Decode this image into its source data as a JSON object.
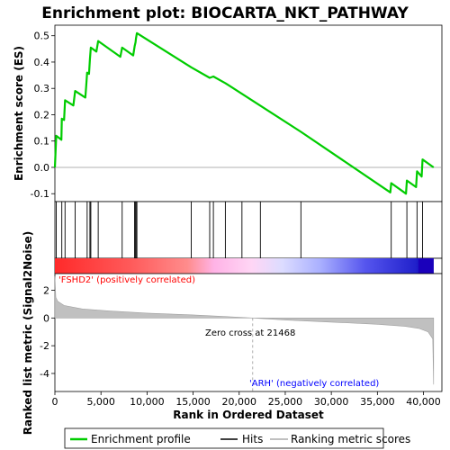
{
  "chart_data": {
    "title": "Enrichment plot: BIOCARTA_NKT_PATHWAY",
    "type": "line",
    "es_panel": {
      "ylabel": "Enrichment score (ES)",
      "ylim": [
        -0.13,
        0.54
      ],
      "yticks": [
        -0.1,
        0.0,
        0.1,
        0.2,
        0.3,
        0.4,
        0.5
      ],
      "ytick_labels": [
        "-0.1",
        "0.0",
        "0.1",
        "0.2",
        "0.3",
        "0.4",
        "0.5"
      ],
      "color": "#00cc00",
      "points": [
        [
          0,
          0.0
        ],
        [
          150,
          0.12
        ],
        [
          700,
          0.105
        ],
        [
          750,
          0.185
        ],
        [
          1000,
          0.18
        ],
        [
          1100,
          0.255
        ],
        [
          2000,
          0.235
        ],
        [
          2200,
          0.29
        ],
        [
          3300,
          0.265
        ],
        [
          3400,
          0.31
        ],
        [
          3500,
          0.36
        ],
        [
          3700,
          0.355
        ],
        [
          3800,
          0.41
        ],
        [
          3900,
          0.455
        ],
        [
          4500,
          0.44
        ],
        [
          4700,
          0.48
        ],
        [
          7100,
          0.42
        ],
        [
          7300,
          0.455
        ],
        [
          8500,
          0.425
        ],
        [
          8650,
          0.46
        ],
        [
          8750,
          0.475
        ],
        [
          8800,
          0.49
        ],
        [
          8900,
          0.51
        ],
        [
          14800,
          0.38
        ],
        [
          16800,
          0.34
        ],
        [
          17200,
          0.345
        ],
        [
          18500,
          0.32
        ],
        [
          26700,
          0.135
        ],
        [
          36400,
          -0.095
        ],
        [
          36500,
          -0.06
        ],
        [
          38100,
          -0.1
        ],
        [
          38200,
          -0.05
        ],
        [
          39200,
          -0.075
        ],
        [
          39300,
          -0.015
        ],
        [
          39800,
          -0.035
        ],
        [
          39900,
          0.03
        ],
        [
          41100,
          0.0
        ]
      ]
    },
    "hits_panel": {
      "hit_ranks": [
        150,
        750,
        1100,
        2200,
        3500,
        3800,
        3900,
        4700,
        7300,
        8650,
        8750,
        8800,
        8900,
        14800,
        16800,
        17200,
        18500,
        20300,
        22300,
        26700,
        36500,
        38200,
        39300,
        39900
      ]
    },
    "metric_panel": {
      "ylabel": "Ranked list metric (Signal2Noise)",
      "xlabel": "Rank in Ordered Dataset",
      "ylim": [
        -5.3,
        3.2
      ],
      "yticks": [
        -4,
        -2,
        0,
        2
      ],
      "ytick_labels": [
        "-4",
        "-2",
        "0",
        "2"
      ],
      "xlim": [
        0,
        42000
      ],
      "xticks": [
        0,
        5000,
        10000,
        15000,
        20000,
        25000,
        30000,
        35000,
        40000
      ],
      "xtick_labels": [
        "0",
        "5,000",
        "10,000",
        "15,000",
        "20,000",
        "25,000",
        "30,000",
        "35,000",
        "40,000"
      ],
      "zero_cross": 21468,
      "zero_cross_label": "Zero cross at 21468",
      "pos_label": "'FSHD2' (positively correlated)",
      "neg_label": "'ARH' (negatively correlated)",
      "pos_color": "#ff0000",
      "neg_color": "#0000ff",
      "fill_color": "#c0c0c0",
      "metric_profile": [
        [
          0,
          3.0
        ],
        [
          100,
          1.5
        ],
        [
          300,
          1.2
        ],
        [
          1000,
          0.9
        ],
        [
          3000,
          0.65
        ],
        [
          6000,
          0.5
        ],
        [
          10000,
          0.35
        ],
        [
          15000,
          0.22
        ],
        [
          21468,
          0.0
        ],
        [
          25000,
          -0.15
        ],
        [
          30000,
          -0.3
        ],
        [
          35000,
          -0.45
        ],
        [
          38000,
          -0.6
        ],
        [
          39500,
          -0.75
        ],
        [
          40500,
          -1.0
        ],
        [
          41000,
          -1.5
        ],
        [
          41100,
          -4.8
        ]
      ],
      "total_ranks": 41100
    },
    "legend": {
      "entries": [
        {
          "label": "Enrichment profile",
          "color": "#00cc00"
        },
        {
          "label": "Hits",
          "color": "#000000"
        },
        {
          "label": "Ranking metric scores",
          "color": "#c0c0c0"
        }
      ]
    }
  }
}
